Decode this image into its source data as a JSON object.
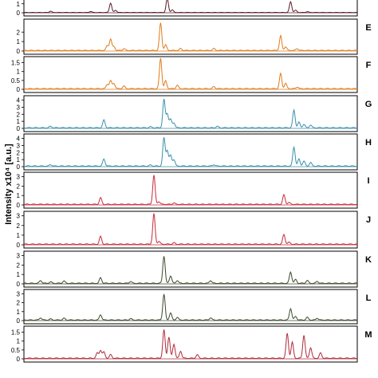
{
  "chart_data": {
    "type": "line",
    "ylabel": "Intensity x10⁴ [a.u.]",
    "xlabel": "",
    "x_range": [
      0,
      100
    ],
    "panels": [
      {
        "label": "",
        "color": "#5a1a2a",
        "ylim": [
          0,
          1.6
        ],
        "yticks": [
          0,
          1
        ],
        "peaks": [
          [
            8,
            0.15
          ],
          [
            20,
            0.12
          ],
          [
            26,
            1.05
          ],
          [
            27.5,
            0.25
          ],
          [
            43,
            1.55
          ],
          [
            44.5,
            0.3
          ],
          [
            80,
            1.2
          ],
          [
            81.5,
            0.25
          ],
          [
            85,
            0.1
          ]
        ]
      },
      {
        "label": "E",
        "color": "#e07b1a",
        "ylim": [
          0,
          3.2
        ],
        "yticks": [
          0,
          1,
          2
        ],
        "peaks": [
          [
            25,
            0.5
          ],
          [
            26,
            1.2
          ],
          [
            27,
            0.4
          ],
          [
            30,
            0.2
          ],
          [
            41,
            2.9
          ],
          [
            42.5,
            0.6
          ],
          [
            47,
            0.2
          ],
          [
            57,
            0.2
          ],
          [
            77,
            1.55
          ],
          [
            78.5,
            0.4
          ],
          [
            82,
            0.2
          ]
        ]
      },
      {
        "label": "F",
        "color": "#e07b1a",
        "ylim": [
          0,
          1.75
        ],
        "yticks": [
          0,
          0.5,
          1,
          1.5
        ],
        "peaks": [
          [
            25,
            0.25
          ],
          [
            26,
            0.45
          ],
          [
            27,
            0.3
          ],
          [
            30,
            0.15
          ],
          [
            41,
            1.72
          ],
          [
            42.5,
            0.45
          ],
          [
            46,
            0.2
          ],
          [
            57,
            0.12
          ],
          [
            77,
            0.85
          ],
          [
            78.5,
            0.3
          ],
          [
            82,
            0.1
          ]
        ]
      },
      {
        "label": "G",
        "color": "#3a8fa8",
        "ylim": [
          0,
          4.4
        ],
        "yticks": [
          0,
          1,
          2,
          3,
          4
        ],
        "peaks": [
          [
            8,
            0.2
          ],
          [
            24,
            1.1
          ],
          [
            38,
            0.15
          ],
          [
            42,
            4.0
          ],
          [
            43,
            2.0
          ],
          [
            44,
            1.2
          ],
          [
            45,
            0.7
          ],
          [
            58,
            0.2
          ],
          [
            81,
            2.5
          ],
          [
            82.5,
            0.8
          ],
          [
            84,
            0.5
          ],
          [
            86,
            0.4
          ]
        ]
      },
      {
        "label": "H",
        "color": "#3a8fa8",
        "ylim": [
          0,
          4.4
        ],
        "yticks": [
          0,
          1,
          2,
          3,
          4
        ],
        "peaks": [
          [
            8,
            0.2
          ],
          [
            24,
            1.0
          ],
          [
            38,
            0.15
          ],
          [
            42,
            4.0
          ],
          [
            43,
            2.2
          ],
          [
            44,
            1.5
          ],
          [
            45,
            0.9
          ],
          [
            57,
            0.2
          ],
          [
            81,
            2.7
          ],
          [
            82.5,
            1.0
          ],
          [
            84,
            0.7
          ],
          [
            86,
            0.5
          ]
        ]
      },
      {
        "label": "I",
        "color": "#c82a3a",
        "ylim": [
          0,
          3.3
        ],
        "yticks": [
          0,
          1,
          2,
          3
        ],
        "peaks": [
          [
            23,
            0.7
          ],
          [
            39,
            3.1
          ],
          [
            40.5,
            0.3
          ],
          [
            45,
            0.15
          ],
          [
            78,
            1.0
          ],
          [
            79.5,
            0.2
          ]
        ]
      },
      {
        "label": "J",
        "color": "#c82a3a",
        "ylim": [
          0,
          3.3
        ],
        "yticks": [
          0,
          1,
          2,
          3
        ],
        "peaks": [
          [
            23,
            0.8
          ],
          [
            39,
            3.15
          ],
          [
            40.5,
            0.3
          ],
          [
            45,
            0.15
          ],
          [
            78,
            1.0
          ],
          [
            79.5,
            0.2
          ]
        ]
      },
      {
        "label": "K",
        "color": "#3a4a2a",
        "ylim": [
          0,
          3.3
        ],
        "yticks": [
          0,
          1,
          2,
          3
        ],
        "peaks": [
          [
            5,
            0.3
          ],
          [
            8,
            0.15
          ],
          [
            12,
            0.25
          ],
          [
            23,
            0.6
          ],
          [
            32,
            0.2
          ],
          [
            42,
            2.9
          ],
          [
            44,
            0.8
          ],
          [
            46,
            0.3
          ],
          [
            56,
            0.3
          ],
          [
            80,
            1.2
          ],
          [
            81.5,
            0.4
          ],
          [
            85,
            0.3
          ],
          [
            88,
            0.2
          ]
        ]
      },
      {
        "label": "L",
        "color": "#3a4a2a",
        "ylim": [
          0,
          3.3
        ],
        "yticks": [
          0,
          1,
          2,
          3
        ],
        "peaks": [
          [
            5,
            0.25
          ],
          [
            8,
            0.12
          ],
          [
            12,
            0.2
          ],
          [
            23,
            0.6
          ],
          [
            32,
            0.15
          ],
          [
            42,
            2.9
          ],
          [
            44,
            0.8
          ],
          [
            46,
            0.3
          ],
          [
            56,
            0.25
          ],
          [
            80,
            1.3
          ],
          [
            81.5,
            0.4
          ],
          [
            85,
            0.3
          ],
          [
            88,
            0.2
          ]
        ]
      },
      {
        "label": "M",
        "color": "#b02a3a",
        "ylim": [
          0,
          1.75
        ],
        "yticks": [
          0,
          0.5,
          1,
          1.5
        ],
        "peaks": [
          [
            22,
            0.3
          ],
          [
            23,
            0.45
          ],
          [
            24,
            0.35
          ],
          [
            26,
            0.2
          ],
          [
            42,
            1.6
          ],
          [
            43.5,
            1.2
          ],
          [
            45,
            0.8
          ],
          [
            47,
            0.4
          ],
          [
            52,
            0.2
          ],
          [
            79,
            1.4
          ],
          [
            80.5,
            0.9
          ],
          [
            84,
            1.3
          ],
          [
            86,
            0.6
          ],
          [
            89,
            0.3
          ]
        ]
      }
    ]
  }
}
